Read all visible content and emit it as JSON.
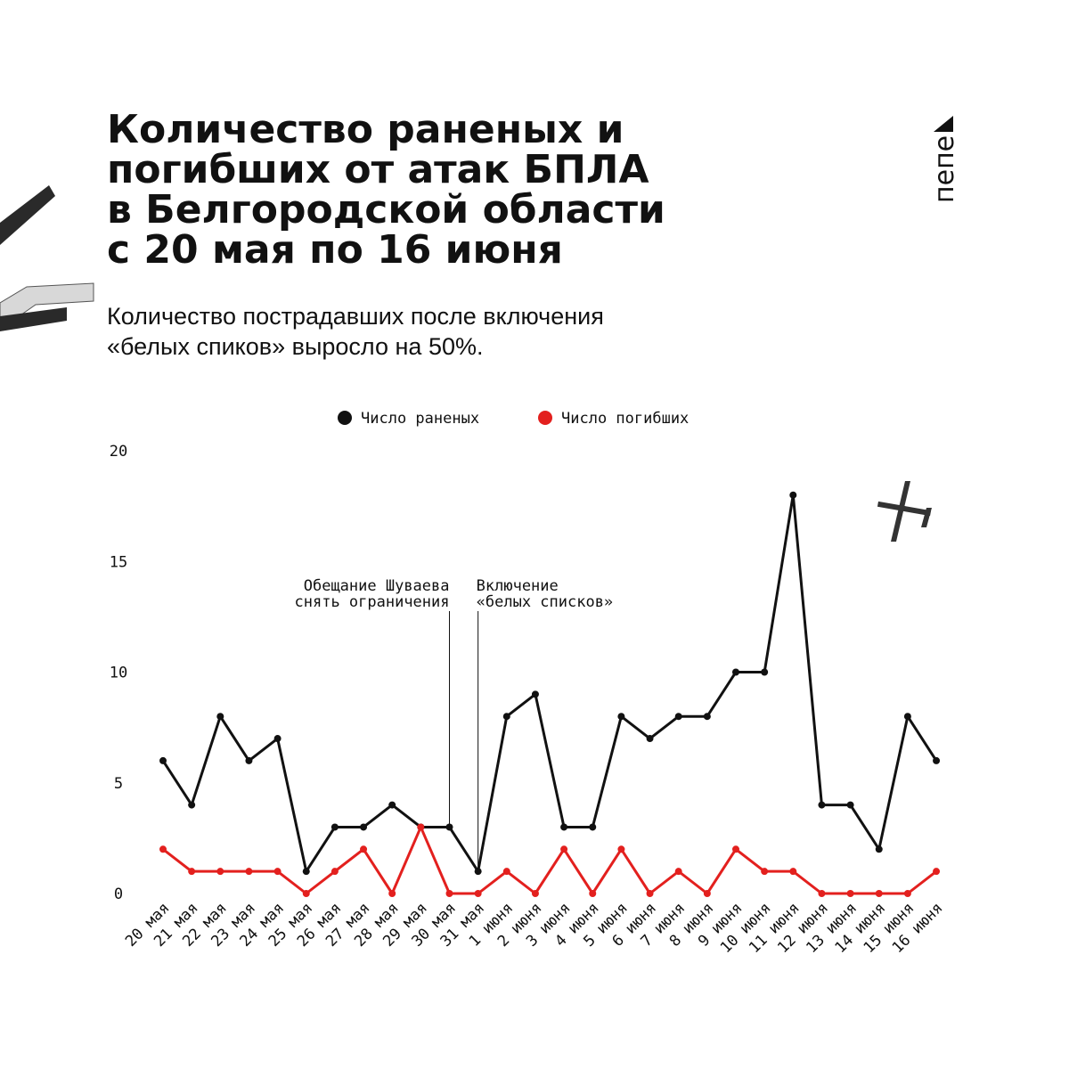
{
  "chart_data": {
    "type": "line",
    "title": [
      "Количество раненых и",
      "погибших от атак БПЛА",
      "в Белгородской области",
      "с 20 мая по 16 июня"
    ],
    "subtitle": [
      "Количество пострадавших после включения",
      "«белых спиков» выросло на 50%."
    ],
    "logo": "пепе",
    "categories": [
      "20 мая",
      "21 мая",
      "22 мая",
      "23 мая",
      "24 мая",
      "25 мая",
      "26 мая",
      "27 мая",
      "28 мая",
      "29 мая",
      "30 мая",
      "31 мая",
      "1 июня",
      "2 июня",
      "3 июня",
      "4 июня",
      "5 июня",
      "6 июня",
      "7 июня",
      "8 июня",
      "9 июня",
      "10 июня",
      "11 июня",
      "12 июня",
      "13 июня",
      "14 июня",
      "15 июня",
      "16 июня"
    ],
    "series": [
      {
        "name": "Число раненых",
        "color": "#111111",
        "values": [
          6,
          4,
          8,
          6,
          7,
          1,
          3,
          3,
          4,
          3,
          3,
          1,
          8,
          9,
          3,
          3,
          8,
          7,
          8,
          8,
          10,
          10,
          18,
          4,
          4,
          2,
          8,
          6
        ]
      },
      {
        "name": "Число погибших",
        "color": "#e3201e",
        "values": [
          2,
          1,
          1,
          1,
          1,
          0,
          1,
          2,
          0,
          3,
          0,
          0,
          1,
          0,
          2,
          0,
          2,
          0,
          1,
          0,
          2,
          1,
          1,
          0,
          0,
          0,
          0,
          1
        ]
      }
    ],
    "annotations": [
      {
        "lines": [
          "Обещание Шуваева",
          "снять ограничения"
        ]
      },
      {
        "lines": [
          "Включение",
          "«белых списков»"
        ]
      }
    ],
    "ylim": [
      0,
      20
    ],
    "yticks": [
      0,
      5,
      10,
      15,
      20
    ],
    "grid": false
  }
}
